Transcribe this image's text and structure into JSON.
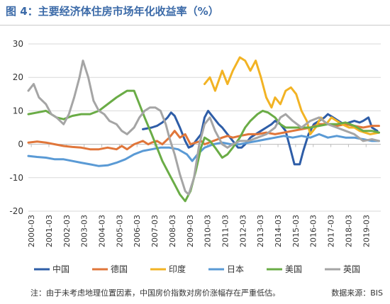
{
  "title": "图 4：主要经济体住房市场年化收益率（%）",
  "note": "注：由于未考虑地理位置因素，中国房价指数对房价涨幅存在严重低估。",
  "source": "数据来源：BIS",
  "colors": {
    "中国": "#2e5da7",
    "德国": "#e0763a",
    "印度": "#f2b324",
    "日本": "#5a9ad5",
    "美国": "#6aac46",
    "英国": "#a5a5a5"
  },
  "chart_data": {
    "type": "line",
    "xlabel": "",
    "ylabel": "",
    "ylim": [
      -20,
      30
    ],
    "yticks": [
      -20,
      -10,
      0,
      10,
      20,
      30
    ],
    "grid": "horizontal",
    "legend": "bottom",
    "xticks": [
      "2000-03",
      "2001-03",
      "2002-03",
      "2003-03",
      "2004-03",
      "2005-03",
      "2006-03",
      "2007-03",
      "2008-03",
      "2009-03",
      "2010-03",
      "2011-03",
      "2012-03",
      "2013-03",
      "2014-03",
      "2015-03",
      "2016-03",
      "2017-03",
      "2018-03",
      "2019-03"
    ],
    "series": [
      {
        "name": "中国",
        "color": "#2e5da7",
        "points": [
          [
            2006.5,
            4.5
          ],
          [
            2007,
            5
          ],
          [
            2007.3,
            5.5
          ],
          [
            2007.6,
            6.5
          ],
          [
            2007.9,
            8
          ],
          [
            2008.1,
            9.5
          ],
          [
            2008.3,
            8.5
          ],
          [
            2008.6,
            5
          ],
          [
            2008.9,
            1
          ],
          [
            2009.1,
            -1
          ],
          [
            2009.3,
            -0.5
          ],
          [
            2009.5,
            1
          ],
          [
            2009.8,
            3
          ],
          [
            2010,
            8
          ],
          [
            2010.2,
            10
          ],
          [
            2010.5,
            8
          ],
          [
            2010.8,
            6
          ],
          [
            2011,
            5
          ],
          [
            2011.3,
            3
          ],
          [
            2011.6,
            1
          ],
          [
            2011.9,
            -1
          ],
          [
            2012.1,
            -1
          ],
          [
            2012.3,
            0
          ],
          [
            2012.6,
            2
          ],
          [
            2012.9,
            3
          ],
          [
            2013.2,
            4
          ],
          [
            2013.5,
            5
          ],
          [
            2013.8,
            6
          ],
          [
            2014,
            7
          ],
          [
            2014.3,
            6
          ],
          [
            2014.6,
            4
          ],
          [
            2014.9,
            -2
          ],
          [
            2015.1,
            -6
          ],
          [
            2015.4,
            -6
          ],
          [
            2015.6,
            -2
          ],
          [
            2015.9,
            3
          ],
          [
            2016.2,
            6
          ],
          [
            2016.5,
            7
          ],
          [
            2016.8,
            8
          ],
          [
            2017,
            9
          ],
          [
            2017.3,
            8
          ],
          [
            2017.6,
            7
          ],
          [
            2017.9,
            6
          ],
          [
            2018.2,
            6.5
          ],
          [
            2018.5,
            7
          ],
          [
            2018.8,
            6.5
          ],
          [
            2019,
            7
          ],
          [
            2019.3,
            8
          ],
          [
            2019.5,
            5
          ],
          [
            2019.8,
            4
          ]
        ]
      },
      {
        "name": "德国",
        "color": "#e0763a",
        "points": [
          [
            2000,
            0.5
          ],
          [
            2000.5,
            0.8
          ],
          [
            2001,
            0.5
          ],
          [
            2001.5,
            0
          ],
          [
            2002,
            -0.5
          ],
          [
            2002.5,
            -0.8
          ],
          [
            2003,
            -1
          ],
          [
            2003.5,
            -1.5
          ],
          [
            2004,
            -1.5
          ],
          [
            2004.5,
            -1
          ],
          [
            2005,
            -1.5
          ],
          [
            2005.3,
            -0.5
          ],
          [
            2005.6,
            -1.5
          ],
          [
            2006,
            0
          ],
          [
            2006.5,
            1
          ],
          [
            2006.8,
            0
          ],
          [
            2007,
            0.5
          ],
          [
            2007.3,
            1
          ],
          [
            2007.6,
            0
          ],
          [
            2008,
            2
          ],
          [
            2008.3,
            4
          ],
          [
            2008.6,
            2
          ],
          [
            2008.9,
            3
          ],
          [
            2009.2,
            0
          ],
          [
            2009.5,
            0.5
          ],
          [
            2009.8,
            1
          ],
          [
            2010,
            0
          ],
          [
            2010.5,
            1
          ],
          [
            2011,
            2
          ],
          [
            2011.3,
            2.5
          ],
          [
            2011.6,
            2
          ],
          [
            2012,
            2.5
          ],
          [
            2012.5,
            3
          ],
          [
            2013,
            3
          ],
          [
            2013.5,
            3.5
          ],
          [
            2014,
            3
          ],
          [
            2014.5,
            3.5
          ],
          [
            2015,
            4
          ],
          [
            2015.5,
            4.5
          ],
          [
            2016,
            5
          ],
          [
            2016.5,
            6
          ],
          [
            2017,
            6
          ],
          [
            2017.5,
            5.5
          ],
          [
            2018,
            6
          ],
          [
            2018.5,
            5.5
          ],
          [
            2019,
            5
          ],
          [
            2019.5,
            5.5
          ],
          [
            2019.9,
            5.5
          ]
        ]
      },
      {
        "name": "印度",
        "color": "#f2b324",
        "points": [
          [
            2010,
            18
          ],
          [
            2010.3,
            20
          ],
          [
            2010.6,
            16
          ],
          [
            2011,
            22
          ],
          [
            2011.3,
            18
          ],
          [
            2011.6,
            22
          ],
          [
            2012,
            26
          ],
          [
            2012.3,
            25
          ],
          [
            2012.6,
            22
          ],
          [
            2012.9,
            25
          ],
          [
            2013.2,
            20
          ],
          [
            2013.5,
            14
          ],
          [
            2013.8,
            11
          ],
          [
            2014,
            14
          ],
          [
            2014.3,
            12
          ],
          [
            2014.6,
            16
          ],
          [
            2014.9,
            17
          ],
          [
            2015.2,
            15
          ],
          [
            2015.5,
            10
          ],
          [
            2015.8,
            7
          ],
          [
            2016,
            3
          ],
          [
            2016.3,
            5
          ],
          [
            2016.6,
            8
          ],
          [
            2016.9,
            6
          ],
          [
            2017.2,
            8
          ],
          [
            2017.5,
            7
          ],
          [
            2017.8,
            6
          ],
          [
            2018.2,
            5
          ],
          [
            2018.5,
            5
          ],
          [
            2018.8,
            4
          ],
          [
            2019.1,
            3.5
          ],
          [
            2019.4,
            3
          ],
          [
            2019.9,
            3.5
          ]
        ]
      },
      {
        "name": "日本",
        "color": "#5a9ad5",
        "points": [
          [
            2000,
            -3.5
          ],
          [
            2000.5,
            -3.8
          ],
          [
            2001,
            -4
          ],
          [
            2001.5,
            -4.5
          ],
          [
            2002,
            -4.5
          ],
          [
            2002.5,
            -5
          ],
          [
            2003,
            -5.5
          ],
          [
            2003.5,
            -6
          ],
          [
            2004,
            -6.5
          ],
          [
            2004.5,
            -6.3
          ],
          [
            2005,
            -5.5
          ],
          [
            2005.5,
            -4.5
          ],
          [
            2006,
            -3
          ],
          [
            2006.5,
            -2
          ],
          [
            2007,
            -1.5
          ],
          [
            2007.5,
            -1
          ],
          [
            2008,
            -1
          ],
          [
            2008.5,
            -1.5
          ],
          [
            2009,
            -3
          ],
          [
            2009.3,
            -5
          ],
          [
            2009.6,
            -3
          ],
          [
            2010,
            -1
          ],
          [
            2010.5,
            0
          ],
          [
            2011,
            0.5
          ],
          [
            2011.5,
            0
          ],
          [
            2012,
            0
          ],
          [
            2012.5,
            0.5
          ],
          [
            2013,
            1
          ],
          [
            2013.5,
            1.5
          ],
          [
            2014,
            2
          ],
          [
            2014.5,
            2.5
          ],
          [
            2015,
            2
          ],
          [
            2015.5,
            2.5
          ],
          [
            2016,
            2
          ],
          [
            2016.5,
            3
          ],
          [
            2017,
            2
          ],
          [
            2017.5,
            2.5
          ],
          [
            2018,
            2
          ],
          [
            2018.5,
            2
          ],
          [
            2019,
            1.5
          ],
          [
            2019.5,
            1
          ],
          [
            2019.9,
            1
          ]
        ]
      },
      {
        "name": "美国",
        "color": "#6aac46",
        "points": [
          [
            2000,
            9
          ],
          [
            2000.5,
            9.5
          ],
          [
            2001,
            10
          ],
          [
            2001.3,
            9
          ],
          [
            2001.6,
            8
          ],
          [
            2002,
            7.5
          ],
          [
            2002.5,
            8.5
          ],
          [
            2003,
            9
          ],
          [
            2003.5,
            9
          ],
          [
            2004,
            10
          ],
          [
            2004.5,
            12
          ],
          [
            2005,
            14
          ],
          [
            2005.3,
            15
          ],
          [
            2005.6,
            16
          ],
          [
            2006,
            16
          ],
          [
            2006.3,
            12
          ],
          [
            2006.6,
            8
          ],
          [
            2007,
            3
          ],
          [
            2007.3,
            -1
          ],
          [
            2007.6,
            -5
          ],
          [
            2008,
            -9
          ],
          [
            2008.3,
            -12
          ],
          [
            2008.6,
            -15
          ],
          [
            2008.9,
            -17
          ],
          [
            2009.2,
            -14
          ],
          [
            2009.5,
            -8
          ],
          [
            2009.8,
            -1
          ],
          [
            2010,
            2
          ],
          [
            2010.3,
            1
          ],
          [
            2010.6,
            -1
          ],
          [
            2011,
            -4
          ],
          [
            2011.3,
            -3
          ],
          [
            2011.6,
            -1
          ],
          [
            2012,
            2
          ],
          [
            2012.3,
            5
          ],
          [
            2012.6,
            7
          ],
          [
            2013,
            9
          ],
          [
            2013.3,
            10
          ],
          [
            2013.6,
            9.5
          ],
          [
            2014,
            8
          ],
          [
            2014.3,
            6
          ],
          [
            2014.6,
            5
          ],
          [
            2015,
            5
          ],
          [
            2015.5,
            5
          ],
          [
            2016,
            5
          ],
          [
            2016.5,
            5.5
          ],
          [
            2017,
            6
          ],
          [
            2017.5,
            6
          ],
          [
            2018,
            6.5
          ],
          [
            2018.5,
            5.5
          ],
          [
            2019,
            4
          ],
          [
            2019.5,
            4
          ],
          [
            2019.9,
            3.5
          ]
        ]
      },
      {
        "name": "英国",
        "color": "#a5a5a5",
        "points": [
          [
            2000,
            16
          ],
          [
            2000.3,
            18
          ],
          [
            2000.6,
            14
          ],
          [
            2001,
            12
          ],
          [
            2001.3,
            9
          ],
          [
            2001.6,
            8
          ],
          [
            2002,
            6
          ],
          [
            2002.3,
            9
          ],
          [
            2002.6,
            14
          ],
          [
            2002.9,
            20
          ],
          [
            2003.1,
            25
          ],
          [
            2003.4,
            20
          ],
          [
            2003.7,
            13
          ],
          [
            2004,
            10
          ],
          [
            2004.3,
            9
          ],
          [
            2004.6,
            7
          ],
          [
            2005,
            6
          ],
          [
            2005.3,
            4
          ],
          [
            2005.6,
            3
          ],
          [
            2006,
            5
          ],
          [
            2006.3,
            8
          ],
          [
            2006.6,
            10
          ],
          [
            2006.9,
            11
          ],
          [
            2007.2,
            11
          ],
          [
            2007.5,
            10
          ],
          [
            2007.8,
            6
          ],
          [
            2008,
            2
          ],
          [
            2008.3,
            -3
          ],
          [
            2008.6,
            -9
          ],
          [
            2008.9,
            -14
          ],
          [
            2009.1,
            -15
          ],
          [
            2009.4,
            -10
          ],
          [
            2009.7,
            0
          ],
          [
            2010,
            6
          ],
          [
            2010.3,
            8
          ],
          [
            2010.6,
            4
          ],
          [
            2011,
            0
          ],
          [
            2011.3,
            -1
          ],
          [
            2011.6,
            0
          ],
          [
            2012,
            1
          ],
          [
            2012.5,
            1
          ],
          [
            2013,
            2
          ],
          [
            2013.5,
            3
          ],
          [
            2014,
            5
          ],
          [
            2014.3,
            8
          ],
          [
            2014.6,
            9
          ],
          [
            2015,
            7
          ],
          [
            2015.5,
            5
          ],
          [
            2016,
            7
          ],
          [
            2016.5,
            8
          ],
          [
            2017,
            6
          ],
          [
            2017.5,
            5
          ],
          [
            2018,
            4
          ],
          [
            2018.5,
            3
          ],
          [
            2019,
            1
          ],
          [
            2019.5,
            1.5
          ],
          [
            2019.9,
            1
          ]
        ]
      }
    ]
  }
}
